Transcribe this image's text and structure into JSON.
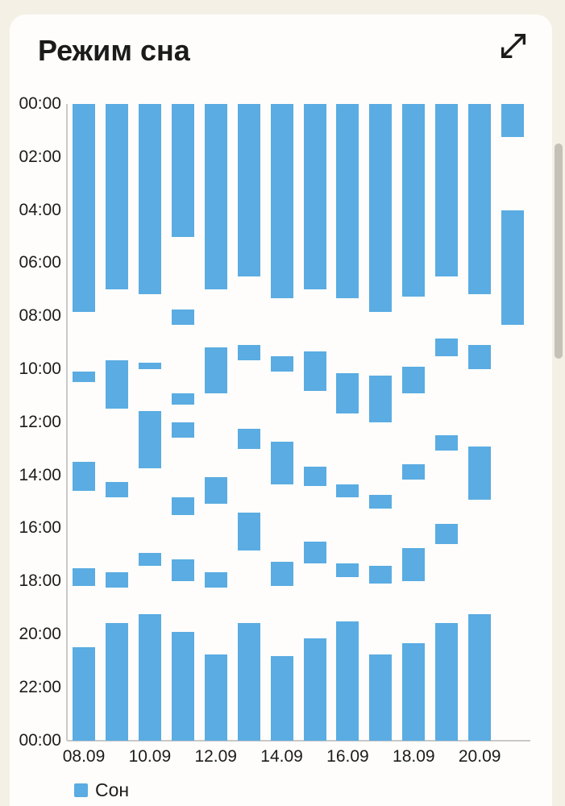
{
  "header": {
    "title": "Режим сна"
  },
  "legend": {
    "label": "Сон"
  },
  "colors": {
    "bar": "#5AACE2",
    "background": "#F4F0E5",
    "card": "#FEFDFB",
    "text": "#1B1B1B",
    "axis_line": "#C9C9C9",
    "scrollbar": "#C4C1B8"
  },
  "scrollbar": {
    "visible": true
  },
  "chart_data": {
    "type": "bar",
    "subtype": "daily-time-interval-columns",
    "title": "Режим сна",
    "legend_entries": [
      "Сон"
    ],
    "grid": false,
    "y_axis": {
      "ticks": [
        "00:00",
        "02:00",
        "04:00",
        "06:00",
        "08:00",
        "10:00",
        "12:00",
        "14:00",
        "16:00",
        "18:00",
        "20:00",
        "22:00",
        "00:00"
      ],
      "min_hours": 0,
      "max_hours": 24,
      "tick_step_hours": 2,
      "direction": "top-to-bottom"
    },
    "x_axis": {
      "tick_labels": [
        "08.09",
        "10.09",
        "12.09",
        "14.09",
        "16.09",
        "18.09",
        "20.09"
      ],
      "tick_every_days": 2
    },
    "days": [
      {
        "intervals": [
          [
            "00:00",
            "07:50"
          ],
          [
            "10:05",
            "10:30"
          ],
          [
            "13:30",
            "14:35"
          ],
          [
            "17:30",
            "18:10"
          ],
          [
            "20:30",
            "24:00"
          ]
        ]
      },
      {
        "intervals": [
          [
            "00:00",
            "07:00"
          ],
          [
            "09:40",
            "11:30"
          ],
          [
            "14:15",
            "14:50"
          ],
          [
            "17:40",
            "18:15"
          ],
          [
            "19:35",
            "24:00"
          ]
        ]
      },
      {
        "intervals": [
          [
            "00:00",
            "07:10"
          ],
          [
            "09:45",
            "10:00"
          ],
          [
            "11:35",
            "13:45"
          ],
          [
            "16:55",
            "17:25"
          ],
          [
            "19:15",
            "24:00"
          ]
        ]
      },
      {
        "intervals": [
          [
            "00:00",
            "05:00"
          ],
          [
            "07:45",
            "08:20"
          ],
          [
            "10:55",
            "11:20"
          ],
          [
            "12:00",
            "12:35"
          ],
          [
            "14:50",
            "15:30"
          ],
          [
            "17:10",
            "18:00"
          ],
          [
            "19:55",
            "24:00"
          ]
        ]
      },
      {
        "intervals": [
          [
            "00:00",
            "07:00"
          ],
          [
            "09:10",
            "10:55"
          ],
          [
            "14:05",
            "15:05"
          ],
          [
            "17:40",
            "18:15"
          ],
          [
            "20:45",
            "24:00"
          ]
        ]
      },
      {
        "intervals": [
          [
            "00:00",
            "06:30"
          ],
          [
            "09:05",
            "09:40"
          ],
          [
            "12:15",
            "13:00"
          ],
          [
            "15:25",
            "16:50"
          ],
          [
            "19:35",
            "24:00"
          ]
        ]
      },
      {
        "intervals": [
          [
            "00:00",
            "07:20"
          ],
          [
            "09:30",
            "10:05"
          ],
          [
            "12:45",
            "14:20"
          ],
          [
            "17:15",
            "18:10"
          ],
          [
            "20:50",
            "24:00"
          ]
        ]
      },
      {
        "intervals": [
          [
            "00:00",
            "07:00"
          ],
          [
            "09:20",
            "10:50"
          ],
          [
            "13:40",
            "14:25"
          ],
          [
            "16:30",
            "17:20"
          ],
          [
            "20:10",
            "24:00"
          ]
        ]
      },
      {
        "intervals": [
          [
            "00:00",
            "07:20"
          ],
          [
            "10:10",
            "11:40"
          ],
          [
            "14:20",
            "14:50"
          ],
          [
            "17:20",
            "17:50"
          ],
          [
            "19:30",
            "24:00"
          ]
        ]
      },
      {
        "intervals": [
          [
            "00:00",
            "07:50"
          ],
          [
            "10:15",
            "12:00"
          ],
          [
            "14:45",
            "15:15"
          ],
          [
            "17:25",
            "18:05"
          ],
          [
            "20:45",
            "24:00"
          ]
        ]
      },
      {
        "intervals": [
          [
            "00:00",
            "07:15"
          ],
          [
            "09:55",
            "10:55"
          ],
          [
            "13:35",
            "14:10"
          ],
          [
            "16:45",
            "18:00"
          ],
          [
            "20:20",
            "24:00"
          ]
        ]
      },
      {
        "intervals": [
          [
            "00:00",
            "06:30"
          ],
          [
            "08:50",
            "09:30"
          ],
          [
            "12:30",
            "13:05"
          ],
          [
            "15:50",
            "16:35"
          ],
          [
            "19:35",
            "24:00"
          ]
        ]
      },
      {
        "intervals": [
          [
            "00:00",
            "07:10"
          ],
          [
            "09:05",
            "10:00"
          ],
          [
            "12:55",
            "14:55"
          ],
          [
            "19:15",
            "24:00"
          ]
        ]
      },
      {
        "intervals": [
          [
            "00:00",
            "01:15"
          ],
          [
            "04:00",
            "08:20"
          ]
        ]
      }
    ]
  }
}
